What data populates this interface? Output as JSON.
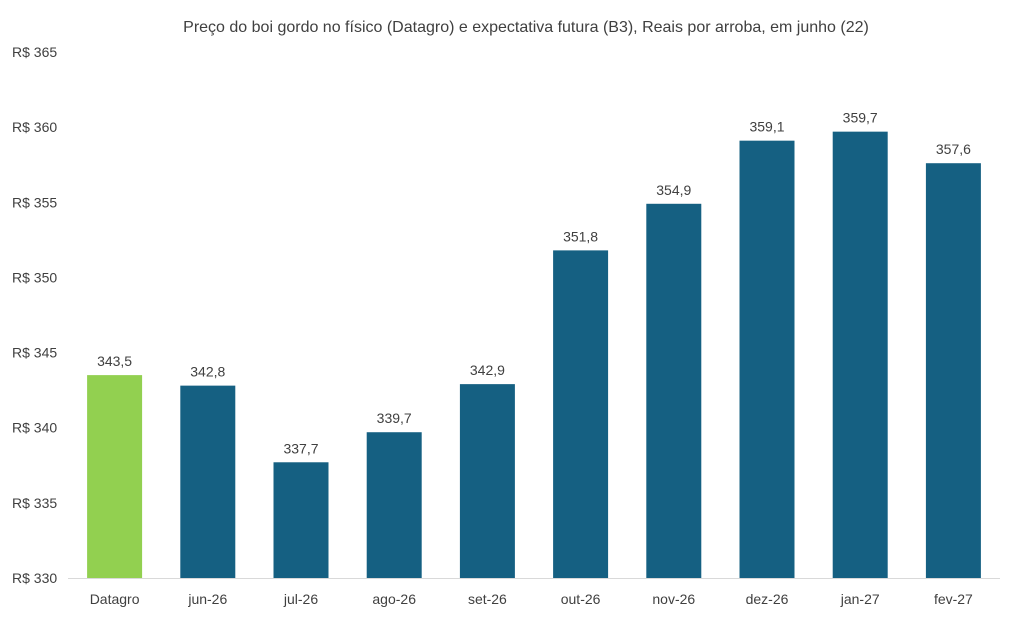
{
  "chart_data": {
    "type": "bar",
    "title": "Preço do boi gordo no físico (Datagro)  e expectativa futura (B3), Reais por arroba, em junho (22)",
    "categories": [
      "Datagro",
      "jun-26",
      "jul-26",
      "ago-26",
      "set-26",
      "out-26",
      "nov-26",
      "dez-26",
      "jan-27",
      "fev-27"
    ],
    "values": [
      343.5,
      342.8,
      337.7,
      339.7,
      342.9,
      351.8,
      354.9,
      359.1,
      359.7,
      357.6
    ],
    "value_labels": [
      "343,5",
      "342,8",
      "337,7",
      "339,7",
      "342,9",
      "351,8",
      "354,9",
      "359,1",
      "359,7",
      "357,6"
    ],
    "ylim": [
      330,
      365
    ],
    "yticks": [
      330,
      335,
      340,
      345,
      350,
      355,
      360,
      365
    ],
    "ytick_labels": [
      "R$ 330",
      "R$ 335",
      "R$ 340",
      "R$ 345",
      "R$ 350",
      "R$ 355",
      "R$ 360",
      "R$ 365"
    ],
    "xlabel": "",
    "ylabel": "",
    "grid": false,
    "colors": [
      "#92d050",
      "#156082",
      "#156082",
      "#156082",
      "#156082",
      "#156082",
      "#156082",
      "#156082",
      "#156082",
      "#156082"
    ]
  }
}
